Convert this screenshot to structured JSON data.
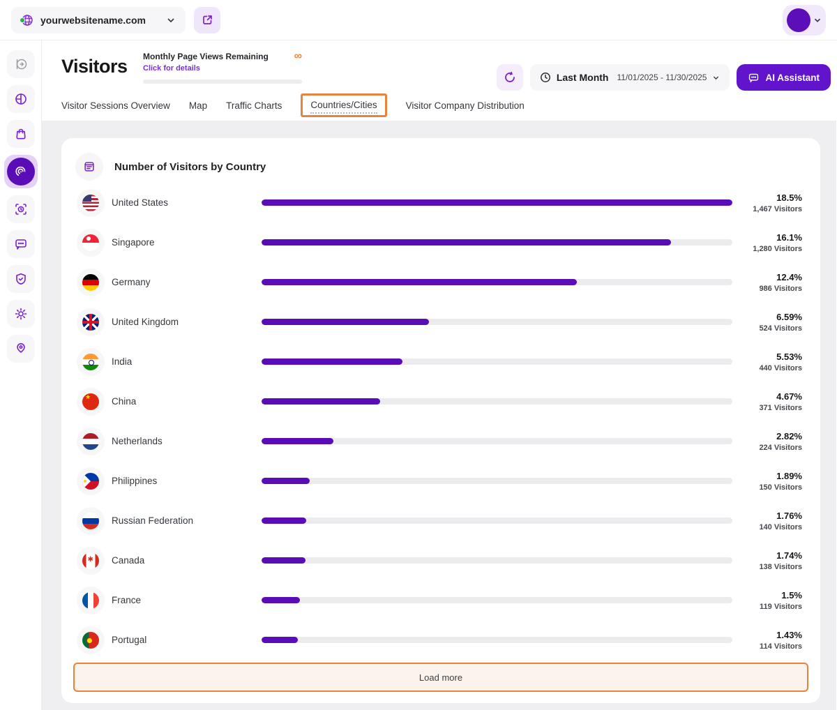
{
  "topbar": {
    "website_name": "yourwebsitename.com"
  },
  "header": {
    "title": "Visitors",
    "quota_title": "Monthly Page Views Remaining",
    "quota_link": "Click for details",
    "quota_value": "∞",
    "date_preset": "Last Month",
    "date_range": "11/01/2025 - 11/30/2025",
    "ai_button": "AI Assistant"
  },
  "tabs": [
    {
      "label": "Visitor Sessions Overview",
      "active": false
    },
    {
      "label": "Map",
      "active": false
    },
    {
      "label": "Traffic Charts",
      "active": false
    },
    {
      "label": "Countries/Cities",
      "active": true,
      "highlighted": true
    },
    {
      "label": "Visitor Company Distribution",
      "active": false
    }
  ],
  "card": {
    "title": "Number of Visitors by Country",
    "load_more": "Load more"
  },
  "countries": [
    {
      "name": "United States",
      "flag": "us",
      "percent": 18.5,
      "percent_label": "18.5%",
      "visitors_label": "1,467 Visitors"
    },
    {
      "name": "Singapore",
      "flag": "sg",
      "percent": 16.1,
      "percent_label": "16.1%",
      "visitors_label": "1,280 Visitors"
    },
    {
      "name": "Germany",
      "flag": "de",
      "percent": 12.4,
      "percent_label": "12.4%",
      "visitors_label": "986 Visitors"
    },
    {
      "name": "United Kingdom",
      "flag": "gb",
      "percent": 6.59,
      "percent_label": "6.59%",
      "visitors_label": "524 Visitors"
    },
    {
      "name": "India",
      "flag": "in",
      "percent": 5.53,
      "percent_label": "5.53%",
      "visitors_label": "440 Visitors"
    },
    {
      "name": "China",
      "flag": "cn",
      "percent": 4.67,
      "percent_label": "4.67%",
      "visitors_label": "371 Visitors"
    },
    {
      "name": "Netherlands",
      "flag": "nl",
      "percent": 2.82,
      "percent_label": "2.82%",
      "visitors_label": "224 Visitors"
    },
    {
      "name": "Philippines",
      "flag": "ph",
      "percent": 1.89,
      "percent_label": "1.89%",
      "visitors_label": "150 Visitors"
    },
    {
      "name": "Russian Federation",
      "flag": "ru",
      "percent": 1.76,
      "percent_label": "1.76%",
      "visitors_label": "140 Visitors"
    },
    {
      "name": "Canada",
      "flag": "ca",
      "percent": 1.74,
      "percent_label": "1.74%",
      "visitors_label": "138 Visitors"
    },
    {
      "name": "France",
      "flag": "fr",
      "percent": 1.5,
      "percent_label": "1.5%",
      "visitors_label": "119 Visitors"
    },
    {
      "name": "Portugal",
      "flag": "pt",
      "percent": 1.43,
      "percent_label": "1.43%",
      "visitors_label": "114 Visitors"
    }
  ],
  "colors": {
    "accent_purple": "#5a0db6",
    "highlight_orange": "#e8823d",
    "quota_infinity_orange": "#f0853c"
  }
}
